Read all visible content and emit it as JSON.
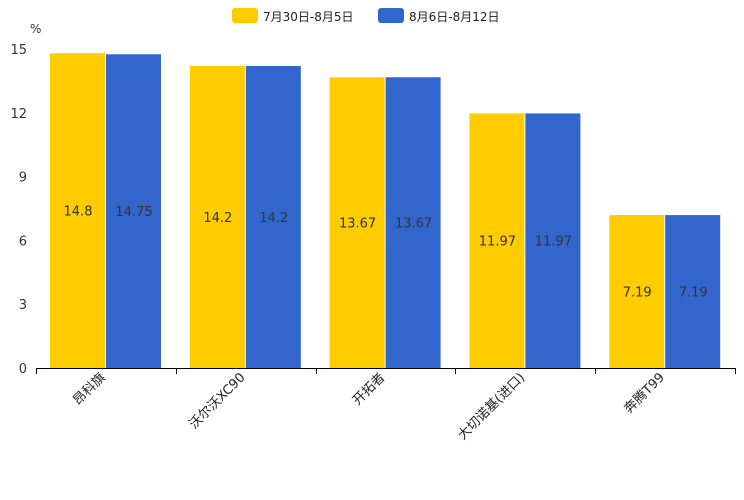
{
  "chart_data": {
    "type": "bar",
    "title": "",
    "xlabel": "",
    "ylabel": "%",
    "ylim": [
      0,
      15
    ],
    "yticks": [
      0,
      3,
      6,
      9,
      12,
      15
    ],
    "grid": false,
    "legend_position": "top-center",
    "categories": [
      "昂科旗",
      "沃尔沃XC90",
      "开拓者",
      "大切诺基(进口)",
      "奔腾T99"
    ],
    "series": [
      {
        "name": "7月30日-8月5日",
        "color": "#FFCC00",
        "values": [
          14.8,
          14.2,
          13.67,
          11.97,
          7.19
        ]
      },
      {
        "name": "8月6日-8月12日",
        "color": "#3366CC",
        "values": [
          14.75,
          14.2,
          13.67,
          11.97,
          7.19
        ]
      }
    ]
  }
}
